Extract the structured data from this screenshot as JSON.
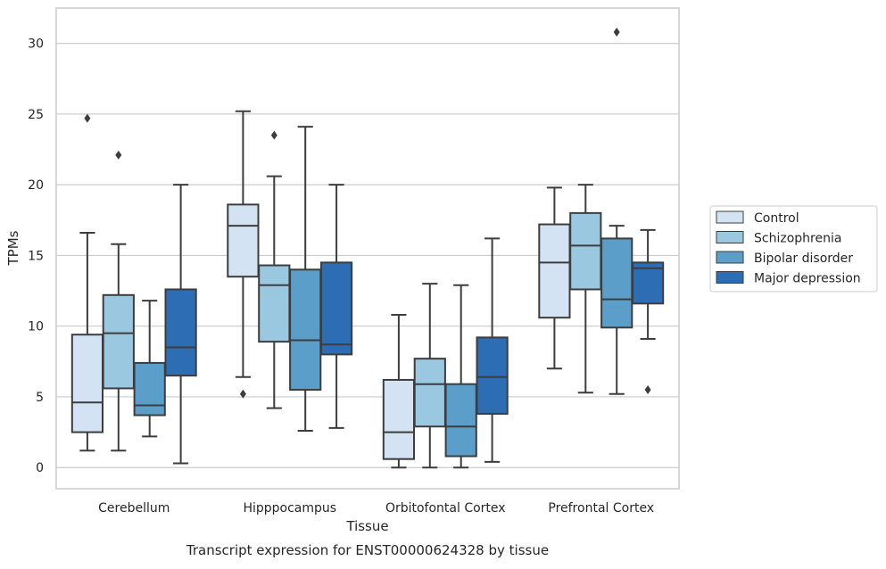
{
  "chart_data": {
    "type": "box",
    "title": "",
    "caption": "Transcript expression for ENST00000624328 by tissue",
    "xlabel": "Tissue",
    "ylabel": "TPMs",
    "ylim": [
      -1.5,
      32.5
    ],
    "yticks": [
      0,
      5,
      10,
      15,
      20,
      25,
      30
    ],
    "grid": "horizontal",
    "legend_position": "right",
    "categories": [
      "Cerebellum",
      "Hipppocampus",
      "Orbitofontal Cortex",
      "Prefrontal Cortex"
    ],
    "series": [
      {
        "name": "Control",
        "color": "#d3e3f3",
        "boxes": [
          {
            "whisker_low": 1.2,
            "q1": 2.5,
            "median": 4.6,
            "q3": 9.4,
            "whisker_high": 16.6,
            "outliers": [
              24.7
            ]
          },
          {
            "whisker_low": 6.4,
            "q1": 13.5,
            "median": 17.1,
            "q3": 18.6,
            "whisker_high": 25.2,
            "outliers": [
              5.2
            ]
          },
          {
            "whisker_low": 0.0,
            "q1": 0.6,
            "median": 2.5,
            "q3": 6.2,
            "whisker_high": 10.8,
            "outliers": []
          },
          {
            "whisker_low": 7.0,
            "q1": 10.6,
            "median": 14.5,
            "q3": 17.2,
            "whisker_high": 19.8,
            "outliers": []
          }
        ]
      },
      {
        "name": "Schizophrenia",
        "color": "#9ac8e0",
        "boxes": [
          {
            "whisker_low": 1.2,
            "q1": 5.6,
            "median": 9.5,
            "q3": 12.2,
            "whisker_high": 15.8,
            "outliers": [
              22.1
            ]
          },
          {
            "whisker_low": 4.2,
            "q1": 8.9,
            "median": 12.9,
            "q3": 14.3,
            "whisker_high": 20.6,
            "outliers": [
              23.5
            ]
          },
          {
            "whisker_low": 0.0,
            "q1": 2.9,
            "median": 5.9,
            "q3": 7.7,
            "whisker_high": 13.0,
            "outliers": []
          },
          {
            "whisker_low": 5.3,
            "q1": 12.6,
            "median": 15.7,
            "q3": 18.0,
            "whisker_high": 20.0,
            "outliers": []
          }
        ]
      },
      {
        "name": "Bipolar disorder",
        "color": "#5a9ec9",
        "boxes": [
          {
            "whisker_low": 2.2,
            "q1": 3.7,
            "median": 4.4,
            "q3": 7.4,
            "whisker_high": 11.8,
            "outliers": []
          },
          {
            "whisker_low": 2.6,
            "q1": 5.5,
            "median": 9.0,
            "q3": 14.0,
            "whisker_high": 24.1,
            "outliers": []
          },
          {
            "whisker_low": 0.0,
            "q1": 0.8,
            "median": 2.9,
            "q3": 5.9,
            "whisker_high": 12.9,
            "outliers": []
          },
          {
            "whisker_low": 5.2,
            "q1": 9.9,
            "median": 11.9,
            "q3": 16.2,
            "whisker_high": 17.1,
            "outliers": [
              30.8
            ]
          }
        ]
      },
      {
        "name": "Major depression",
        "color": "#2d6db3",
        "boxes": [
          {
            "whisker_low": 0.3,
            "q1": 6.5,
            "median": 8.5,
            "q3": 12.6,
            "whisker_high": 20.0,
            "outliers": []
          },
          {
            "whisker_low": 2.8,
            "q1": 8.0,
            "median": 8.7,
            "q3": 14.5,
            "whisker_high": 20.0,
            "outliers": []
          },
          {
            "whisker_low": 0.4,
            "q1": 3.8,
            "median": 6.4,
            "q3": 9.2,
            "whisker_high": 16.2,
            "outliers": []
          },
          {
            "whisker_low": 9.1,
            "q1": 11.6,
            "median": 14.1,
            "q3": 14.5,
            "whisker_high": 16.8,
            "outliers": [
              5.5
            ]
          }
        ]
      }
    ]
  }
}
